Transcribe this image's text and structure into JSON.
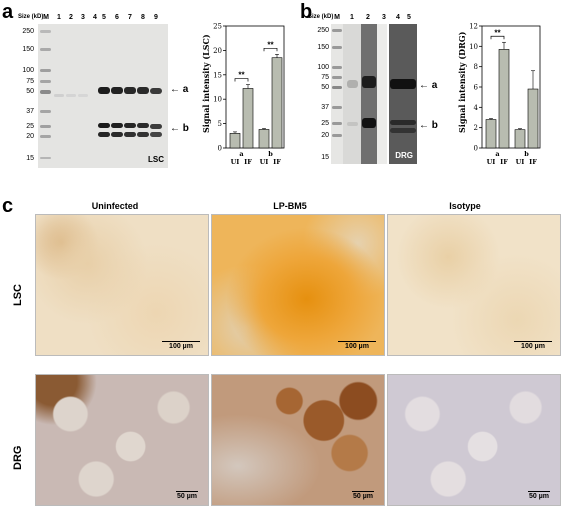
{
  "panels": {
    "a": {
      "letter": "a",
      "mw_header": "Size (kD)",
      "mw_markers": [
        "250",
        "150",
        "100",
        "75",
        "50",
        "37",
        "25",
        "20",
        "15"
      ],
      "lanes": [
        "M",
        "1",
        "2",
        "3",
        "4",
        "5",
        "6",
        "7",
        "8",
        "9"
      ],
      "band_labels": [
        "a",
        "b"
      ],
      "tissue_label": "LSC",
      "chart": {
        "ylabel": "Signal intensity (LSC)",
        "significance": [
          "**",
          "**"
        ]
      }
    },
    "b": {
      "letter": "b",
      "mw_header": "Size (kD)",
      "mw_markers": [
        "250",
        "150",
        "100",
        "75",
        "50",
        "37",
        "25",
        "20",
        "15"
      ],
      "lanes": [
        "M",
        "1",
        "2",
        "3",
        "4",
        "5"
      ],
      "band_labels": [
        "a",
        "b"
      ],
      "tissue_label": "DRG",
      "chart": {
        "ylabel": "Signal intensity (DRG)",
        "significance": [
          "**"
        ]
      }
    },
    "c": {
      "letter": "c",
      "columns": [
        "Uninfected",
        "LP-BM5",
        "Isotype"
      ],
      "rows": [
        "LSC",
        "DRG"
      ],
      "scale_lsc": "100 µm",
      "scale_drg": "50 µm"
    }
  },
  "chart_data": [
    {
      "type": "bar",
      "panel": "a",
      "groups": [
        "a",
        "b"
      ],
      "categories": [
        "UI",
        "IF",
        "UI",
        "IF"
      ],
      "values": [
        3,
        12.2,
        3.8,
        18.5
      ],
      "errors": [
        0.3,
        0.8,
        0.2,
        0.7
      ],
      "ylabel": "Signal intensity (LSC)",
      "ylim": [
        0,
        25
      ],
      "yticks": [
        0,
        5,
        10,
        15,
        20,
        25
      ]
    },
    {
      "type": "bar",
      "panel": "b",
      "groups": [
        "a",
        "b"
      ],
      "categories": [
        "UI",
        "IF",
        "UI",
        "IF"
      ],
      "values": [
        2.8,
        9.7,
        1.8,
        5.8
      ],
      "errors": [
        0.1,
        0.7,
        0.1,
        1.8
      ],
      "ylabel": "Signal intensity (DRG)",
      "ylim": [
        0,
        12
      ],
      "yticks": [
        0,
        2,
        4,
        6,
        8,
        10,
        12
      ]
    }
  ]
}
